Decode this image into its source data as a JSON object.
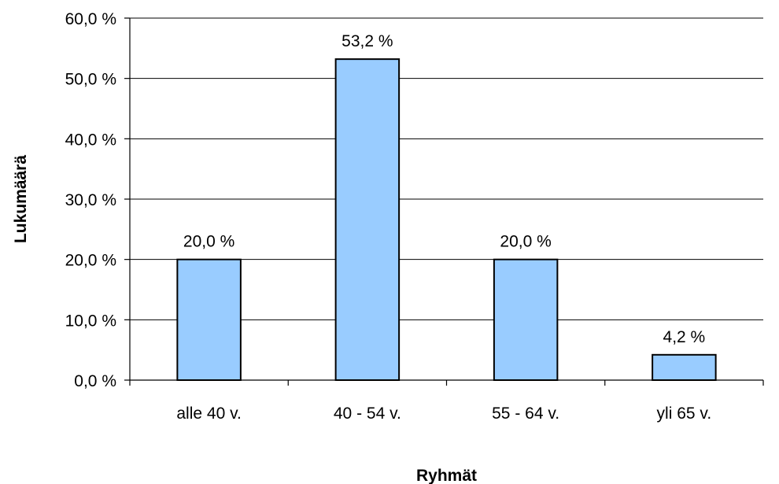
{
  "chart_data": {
    "type": "bar",
    "title": "",
    "xlabel": "Ryhmät",
    "ylabel": "Lukumäärä",
    "categories": [
      "alle 40 v.",
      "40 - 54 v.",
      "55 - 64 v.",
      "yli 65 v."
    ],
    "values": [
      20.0,
      53.2,
      20.0,
      4.2
    ],
    "value_labels": [
      "20,0 %",
      "53,2 %",
      "20,0 %",
      "4,2 %"
    ],
    "y_ticks": [
      0,
      10,
      20,
      30,
      40,
      50,
      60
    ],
    "y_tick_labels": [
      "0,0 %",
      "10,0 %",
      "20,0 %",
      "30,0 %",
      "40,0 %",
      "50,0 %",
      "60,0 %"
    ],
    "ylim": [
      0,
      60
    ],
    "grid": true,
    "legend": "none",
    "colors": {
      "bar": "#99ccff",
      "bar_edge": "#000000",
      "grid": "#000000"
    }
  }
}
